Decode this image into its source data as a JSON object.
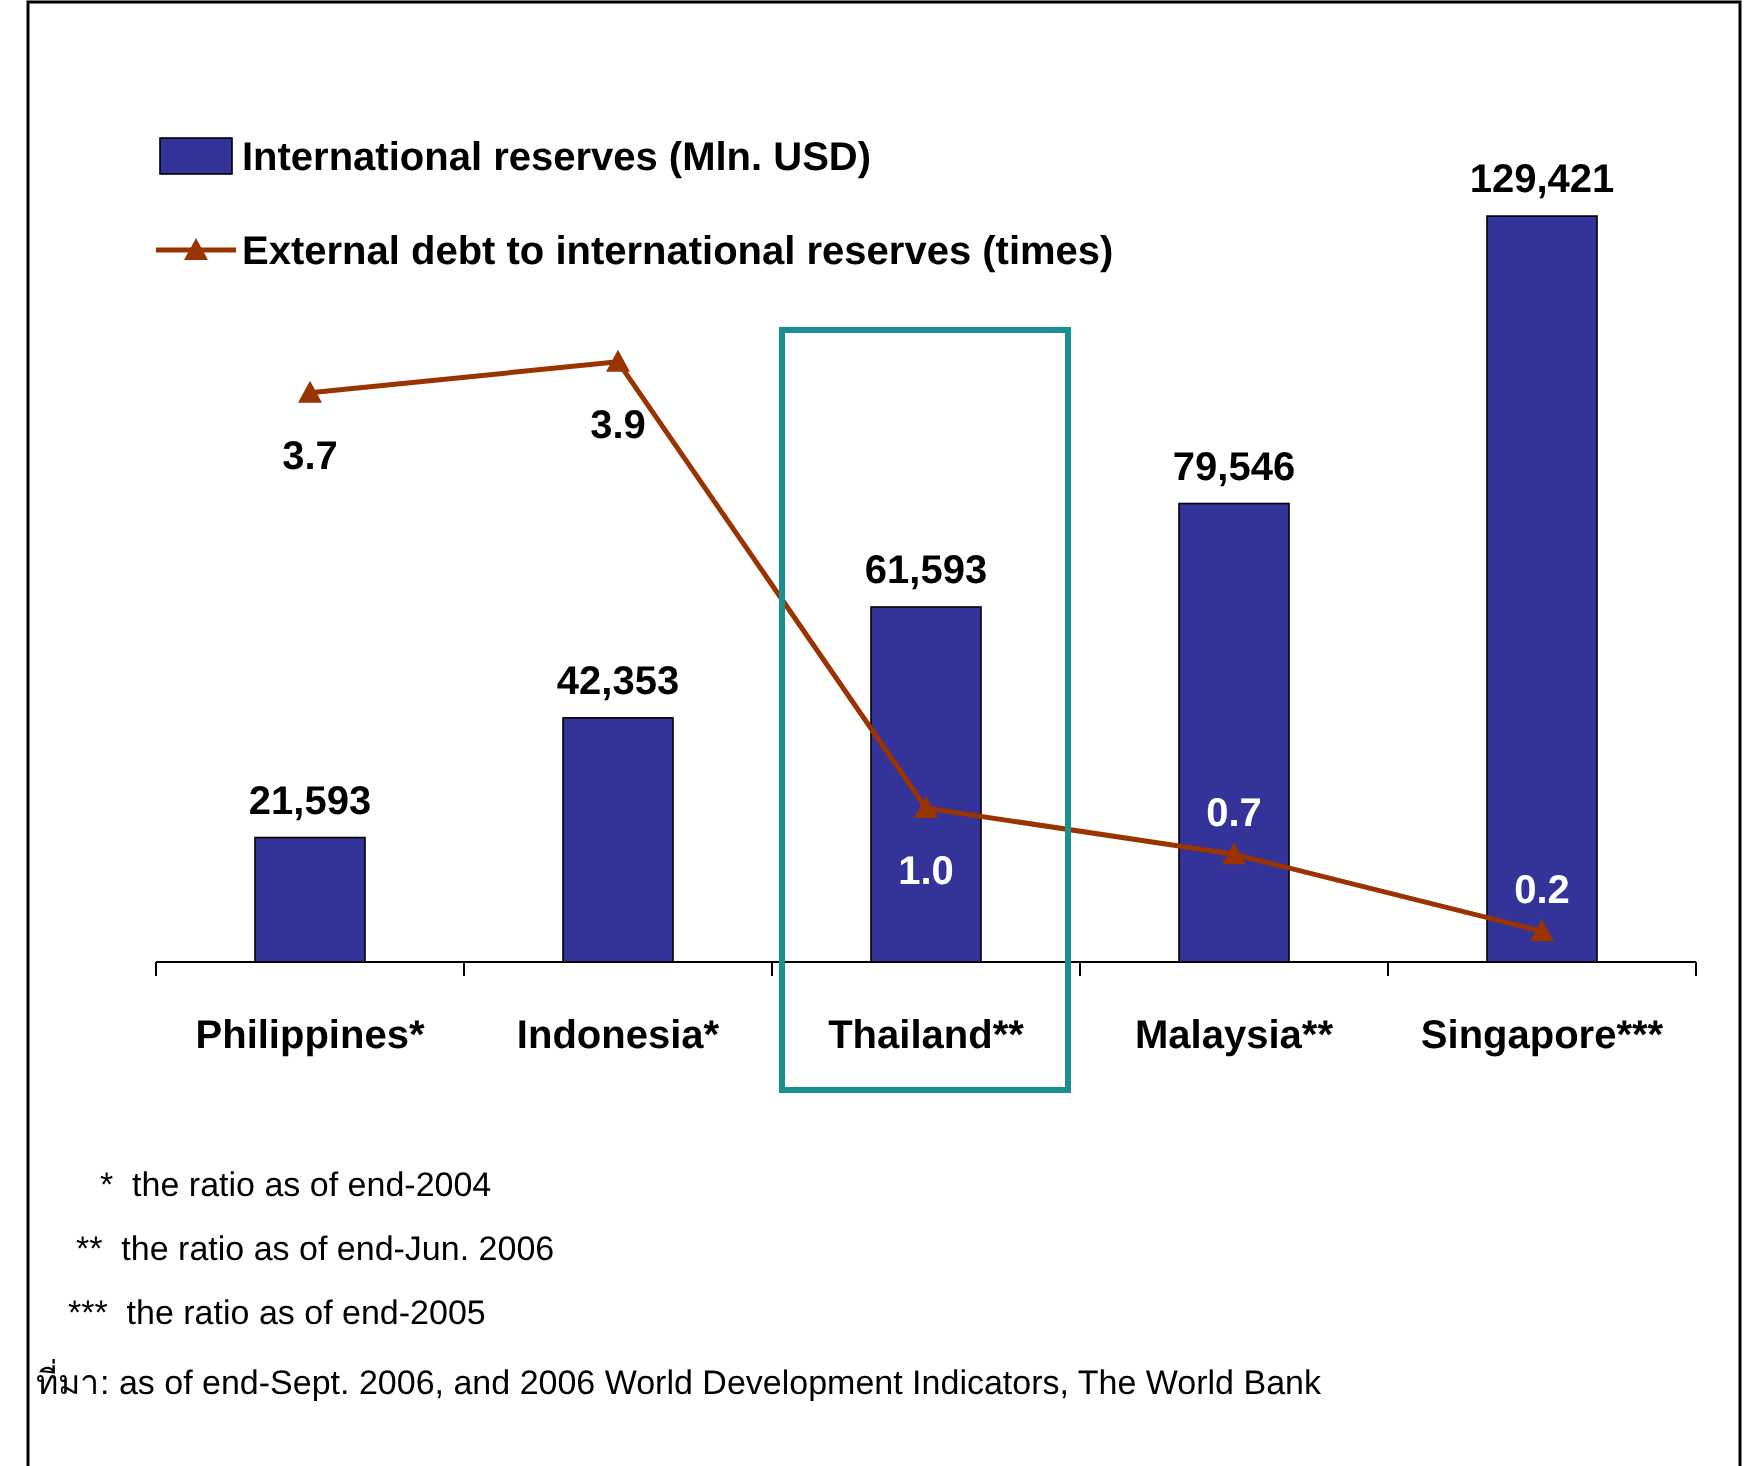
{
  "chart_data": {
    "type": "bar",
    "categories": [
      "Philippines*",
      "Indonesia*",
      "Thailand**",
      "Malaysia**",
      "Singapore***"
    ],
    "series": [
      {
        "name": "International reserves (Mln. USD)",
        "color": "#333399",
        "values": [
          21593,
          42353,
          61593,
          79546,
          129421
        ],
        "value_labels": [
          "21,593",
          "42,353",
          "61,593",
          "79,546",
          "129,421"
        ]
      },
      {
        "name": "External debt to international reserves (times)",
        "type": "line",
        "axis": "y2",
        "color": "#993300",
        "values": [
          3.7,
          3.9,
          1.0,
          0.7,
          0.2
        ],
        "value_labels": [
          "3.7",
          "3.9",
          "1.0",
          "0.7",
          "0.2"
        ]
      }
    ],
    "marker": "triangle",
    "legend": "top left",
    "tick_labels": "x",
    "grid": false,
    "annotations": [
      "*  the ratio as of end-2004",
      "**  the ratio as of end-Jun. 2006",
      "***  the ratio as of end-2005",
      "ที่มา: as of end-Sept. 2006, and 2006 World Development Indicators, The World Bank"
    ]
  }
}
